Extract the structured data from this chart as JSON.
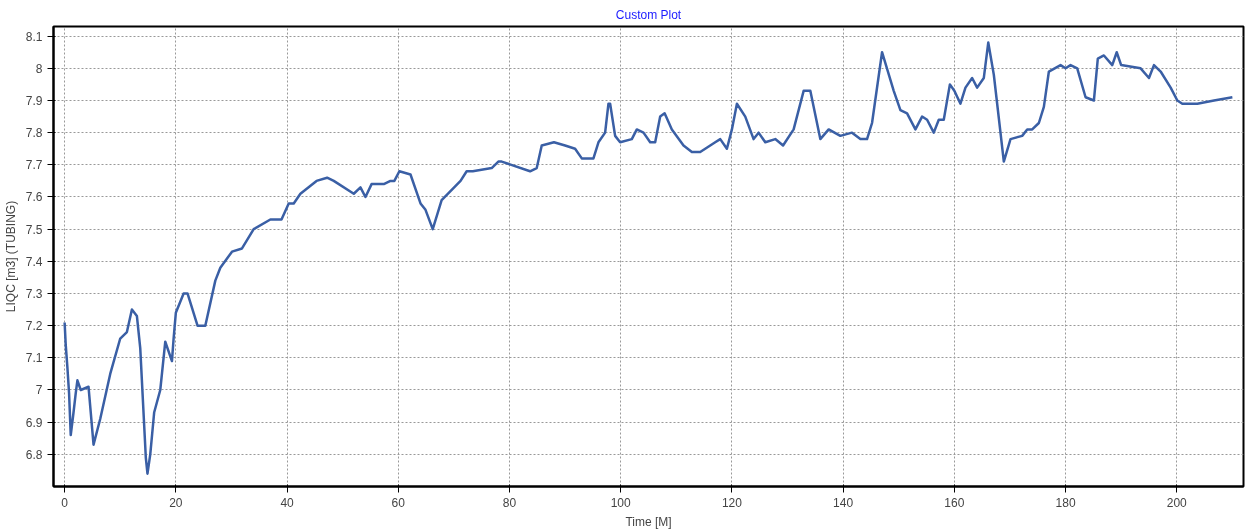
{
  "chart_data": {
    "type": "line",
    "title": "Custom Plot",
    "xlabel": "Time [M]",
    "ylabel": "LIQC [m3] (TUBING)",
    "xlim": [
      -2,
      212
    ],
    "ylim": [
      6.7,
      8.13
    ],
    "xticks": [
      0,
      20,
      40,
      60,
      80,
      100,
      120,
      140,
      160,
      180,
      200
    ],
    "yticks": [
      6.8,
      6.9,
      7,
      7.1,
      7.2,
      7.3,
      7.4,
      7.5,
      7.6,
      7.7,
      7.8,
      7.9,
      8,
      8.1
    ],
    "grid": true,
    "marker": "none",
    "line_style": "solid",
    "series": [
      {
        "color": "#3a5fa5",
        "x": [
          0,
          0.2,
          0.5,
          0.8,
          1.1,
          1.6,
          2.0,
          2.3,
          2.9,
          4.3,
          5.2,
          6.4,
          8.2,
          10,
          11.2,
          12.1,
          13,
          13.6,
          14.6,
          14.9,
          15.4,
          16.1,
          17.2,
          18.1,
          19.3,
          19.6,
          20,
          21.4,
          22.1,
          23.9,
          25.3,
          27.1,
          28,
          30.1,
          31.9,
          34,
          37,
          39,
          40.3,
          41.2,
          42.4,
          45.3,
          47.2,
          48.4,
          52,
          53.2,
          54.1,
          55.2,
          57.4,
          58.6,
          59.3,
          60.2,
          62.2,
          64,
          64.9,
          66.2,
          67.8,
          71.2,
          72.3,
          73.4,
          76.8,
          78,
          78.6,
          83.7,
          84.9,
          85.8,
          88,
          90,
          91.8,
          93,
          95.1,
          96,
          97.2,
          97.8,
          98.1,
          99,
          99.9,
          102,
          102.9,
          104.1,
          105.3,
          106.2,
          107.1,
          107.9,
          109.2,
          111.3,
          112.8,
          114.3,
          116.1,
          117,
          117.9,
          119.1,
          120,
          120.9,
          122.4,
          123.9,
          124.8,
          126,
          127.8,
          129.2,
          131.1,
          132.9,
          134.1,
          135.9,
          137.4,
          139.5,
          141.6,
          143.1,
          144.3,
          145.2,
          147,
          149.1,
          150.3,
          151.5,
          153,
          154.2,
          155.1,
          156.3,
          157.2,
          158.1,
          159.2,
          160,
          161.1,
          162,
          163.2,
          164.1,
          165.3,
          166.1,
          167.1,
          168.9,
          170.1,
          172.2,
          173.1,
          174,
          175.2,
          176.1,
          177,
          179.1,
          180,
          180.9,
          182.1,
          183.6,
          185.1,
          185.8,
          186.9,
          188.4,
          189.2,
          190,
          193.5,
          195,
          195.9,
          197.1,
          198.9,
          200.1,
          201,
          203.7,
          206.7,
          210
        ],
        "values": [
          7.21,
          7.14,
          7.07,
          6.99,
          6.86,
          6.93,
          6.99,
          7.03,
          7.0,
          7.01,
          6.83,
          6.91,
          7.05,
          7.16,
          7.18,
          7.25,
          7.23,
          7.13,
          6.79,
          6.74,
          6.8,
          6.93,
          7.0,
          7.15,
          7.09,
          7.16,
          7.24,
          7.3,
          7.3,
          7.2,
          7.2,
          7.34,
          7.38,
          7.43,
          7.44,
          7.5,
          7.53,
          7.53,
          7.58,
          7.58,
          7.61,
          7.65,
          7.66,
          7.65,
          7.61,
          7.63,
          7.6,
          7.64,
          7.64,
          7.65,
          7.65,
          7.68,
          7.67,
          7.58,
          7.56,
          7.5,
          7.59,
          7.65,
          7.68,
          7.68,
          7.69,
          7.71,
          7.71,
          7.68,
          7.69,
          7.76,
          7.77,
          7.76,
          7.75,
          7.72,
          7.72,
          7.77,
          7.8,
          7.89,
          7.89,
          7.79,
          7.77,
          7.78,
          7.81,
          7.8,
          7.77,
          7.77,
          7.85,
          7.86,
          7.81,
          7.76,
          7.74,
          7.74,
          7.76,
          7.77,
          7.78,
          7.75,
          7.81,
          7.89,
          7.85,
          7.78,
          7.8,
          7.77,
          7.78,
          7.76,
          7.81,
          7.93,
          7.93,
          7.78,
          7.81,
          7.79,
          7.8,
          7.78,
          7.78,
          7.83,
          8.05,
          7.93,
          7.87,
          7.86,
          7.81,
          7.85,
          7.84,
          7.8,
          7.84,
          7.84,
          7.95,
          7.93,
          7.89,
          7.94,
          7.97,
          7.94,
          7.97,
          8.08,
          7.98,
          7.71,
          7.78,
          7.79,
          7.81,
          7.81,
          7.83,
          7.88,
          7.99,
          8.01,
          8.0,
          8.01,
          8.0,
          7.91,
          7.9,
          8.03,
          8.04,
          8.01,
          8.05,
          8.01,
          8.0,
          7.97,
          8.01,
          7.99,
          7.94,
          7.9,
          7.89,
          7.89,
          7.9,
          7.91
        ]
      }
    ]
  }
}
